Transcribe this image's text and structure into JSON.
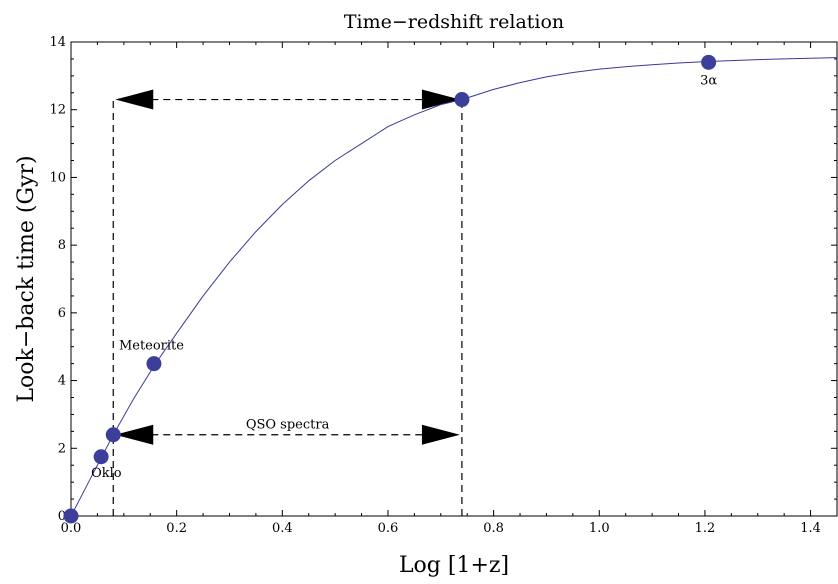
{
  "chart_data": {
    "type": "scatter",
    "title": "Time−redshift relation",
    "xlabel": "Log  [1+z]",
    "ylabel": "Look−back time  (Gyr)",
    "xlim": [
      0,
      1.45
    ],
    "ylim": [
      0,
      14
    ],
    "x_ticks": [
      0.0,
      0.2,
      0.4,
      0.6,
      0.8,
      1.0,
      1.2,
      1.4
    ],
    "x_tick_labels": [
      "0.0",
      "0.2",
      "0.4",
      "0.6",
      "0.8",
      "1.0",
      "1.2",
      "1.4"
    ],
    "y_ticks": [
      0,
      2,
      4,
      6,
      8,
      10,
      12,
      14
    ],
    "y_tick_labels": [
      "0",
      "2",
      "4",
      "6",
      "8",
      "10",
      "12",
      "14"
    ],
    "curve": {
      "x": [
        0.0,
        0.02,
        0.05,
        0.08,
        0.12,
        0.16,
        0.2,
        0.25,
        0.3,
        0.35,
        0.4,
        0.45,
        0.5,
        0.55,
        0.6,
        0.65,
        0.7,
        0.74,
        0.8,
        0.85,
        0.9,
        0.95,
        1.0,
        1.05,
        1.1,
        1.15,
        1.2,
        1.25,
        1.3,
        1.35,
        1.4,
        1.45
      ],
      "y": [
        0.0,
        0.6,
        1.5,
        2.4,
        3.5,
        4.5,
        5.4,
        6.5,
        7.5,
        8.4,
        9.2,
        9.9,
        10.5,
        11.0,
        11.5,
        11.85,
        12.15,
        12.3,
        12.6,
        12.8,
        12.97,
        13.1,
        13.2,
        13.27,
        13.33,
        13.38,
        13.42,
        13.45,
        13.48,
        13.5,
        13.52,
        13.54
      ]
    },
    "points": [
      {
        "x": 0.0,
        "y": 0.0,
        "label": ""
      },
      {
        "x": 0.057,
        "y": 1.75,
        "label": "Oklo"
      },
      {
        "x": 0.08,
        "y": 2.4,
        "label": ""
      },
      {
        "x": 0.157,
        "y": 4.5,
        "label": "Meteorite"
      },
      {
        "x": 0.74,
        "y": 12.3,
        "label": ""
      },
      {
        "x": 1.207,
        "y": 13.4,
        "label": "3α"
      }
    ],
    "qso_range": {
      "x_start": 0.08,
      "x_end": 0.74,
      "y_bottom": 2.4,
      "y_top": 12.3,
      "label": "QSO spectra"
    },
    "colors": {
      "curve": "#3a3a9a",
      "points": "#3b3f99",
      "arrows": "#000000",
      "axes": "#000000"
    }
  }
}
